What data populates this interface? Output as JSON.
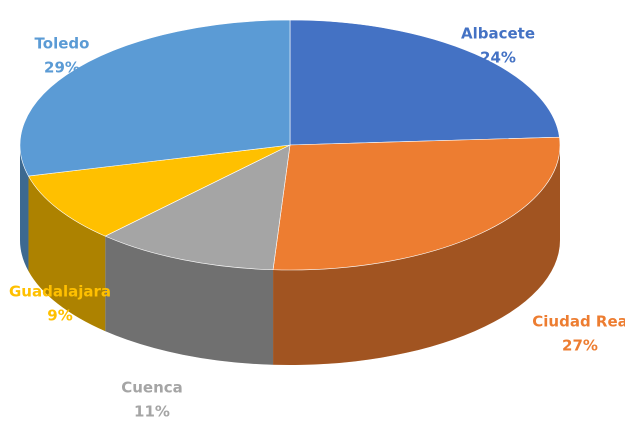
{
  "chart_data": {
    "type": "pie3d",
    "categories": [
      "Albacete",
      "Ciudad Rea",
      "Cuenca",
      "Guadalajara",
      "Toledo"
    ],
    "values": [
      24,
      27,
      11,
      9,
      29
    ],
    "value_labels": [
      "24%",
      "27%",
      "11%",
      "9%",
      "29%"
    ],
    "colors": [
      "#4472c4",
      "#ed7d31",
      "#a5a5a5",
      "#ffc000",
      "#5b9bd5"
    ]
  }
}
